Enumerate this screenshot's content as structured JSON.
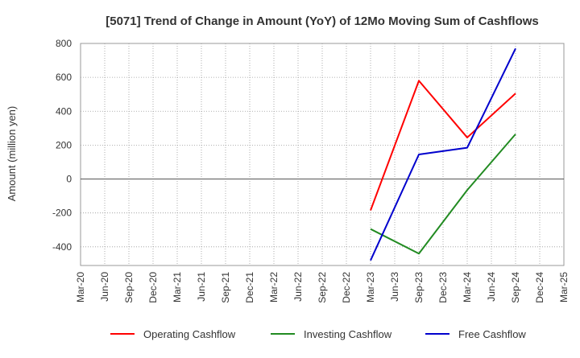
{
  "chart_data": {
    "type": "line",
    "title": "[5071]  Trend of Change in Amount (YoY) of 12Mo Moving Sum of Cashflows",
    "xlabel": "",
    "ylabel": "Amount (million yen)",
    "ylim": [
      -510,
      800
    ],
    "yticks": [
      800,
      600,
      400,
      200,
      0,
      -200,
      -400
    ],
    "x": [
      "Mar-20",
      "Jun-20",
      "Sep-20",
      "Dec-20",
      "Mar-21",
      "Jun-21",
      "Sep-21",
      "Dec-21",
      "Mar-22",
      "Jun-22",
      "Sep-22",
      "Dec-22",
      "Mar-23",
      "Jun-23",
      "Sep-23",
      "Dec-23",
      "Mar-24",
      "Jun-24",
      "Sep-24",
      "Dec-24",
      "Mar-25"
    ],
    "grid": true,
    "legend_position": "bottom",
    "series": [
      {
        "name": "Operating Cashflow",
        "color": "#ff0000",
        "values": [
          null,
          null,
          null,
          null,
          null,
          null,
          null,
          null,
          null,
          null,
          null,
          null,
          -185,
          null,
          580,
          null,
          245,
          null,
          505,
          null,
          null
        ]
      },
      {
        "name": "Investing Cashflow",
        "color": "#228b22",
        "values": [
          null,
          null,
          null,
          null,
          null,
          null,
          null,
          null,
          null,
          null,
          null,
          null,
          -295,
          null,
          -440,
          null,
          -65,
          null,
          265,
          null,
          null
        ]
      },
      {
        "name": "Free Cashflow",
        "color": "#0000cd",
        "values": [
          null,
          null,
          null,
          null,
          null,
          null,
          null,
          null,
          null,
          null,
          null,
          null,
          -480,
          null,
          145,
          null,
          185,
          null,
          770,
          null,
          null
        ]
      }
    ]
  }
}
